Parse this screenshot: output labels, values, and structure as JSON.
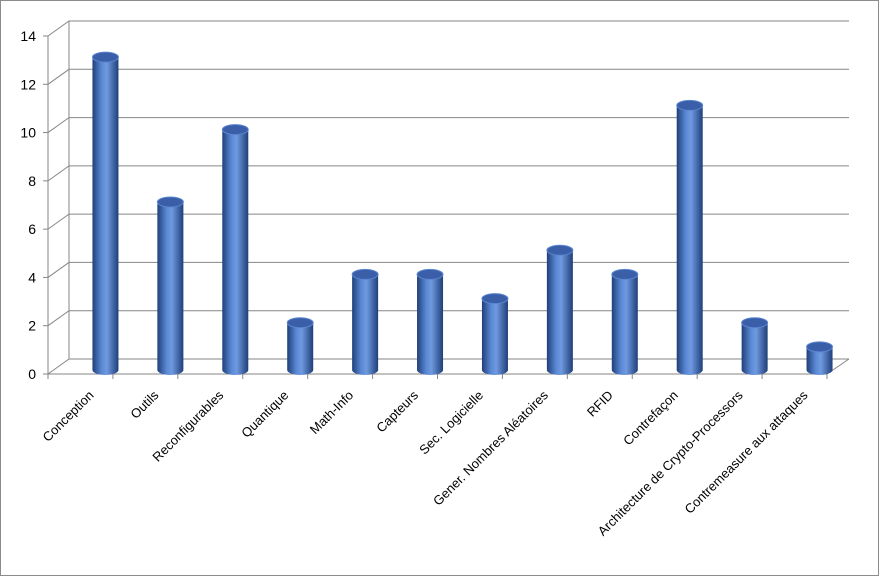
{
  "chart_data": {
    "type": "bar",
    "style": "3d-cylinder",
    "categories": [
      "Conception",
      "Outils",
      "Reconfigurables",
      "Quantique",
      "Math-Info",
      "Capteurs",
      "Sec. Logicielle",
      "Gener. Nombres Aléatoires",
      "RFID",
      "Contrefaçon",
      "Architecture de Crypto-Processors",
      "Contremeasure aux attaques"
    ],
    "values": [
      13,
      7,
      10,
      2,
      4,
      4,
      3,
      5,
      4,
      11,
      2,
      1
    ],
    "yticks": [
      "0",
      "2",
      "4",
      "6",
      "8",
      "10",
      "12",
      "14"
    ],
    "ylim": [
      0,
      14
    ],
    "grid": true,
    "legend": "none",
    "colors": {
      "bar": "#4472c4",
      "bar_dark": "#1f3f7a",
      "bar_light": "#8fb0e6",
      "top": "#3a5fa8",
      "grid": "#868686"
    }
  }
}
